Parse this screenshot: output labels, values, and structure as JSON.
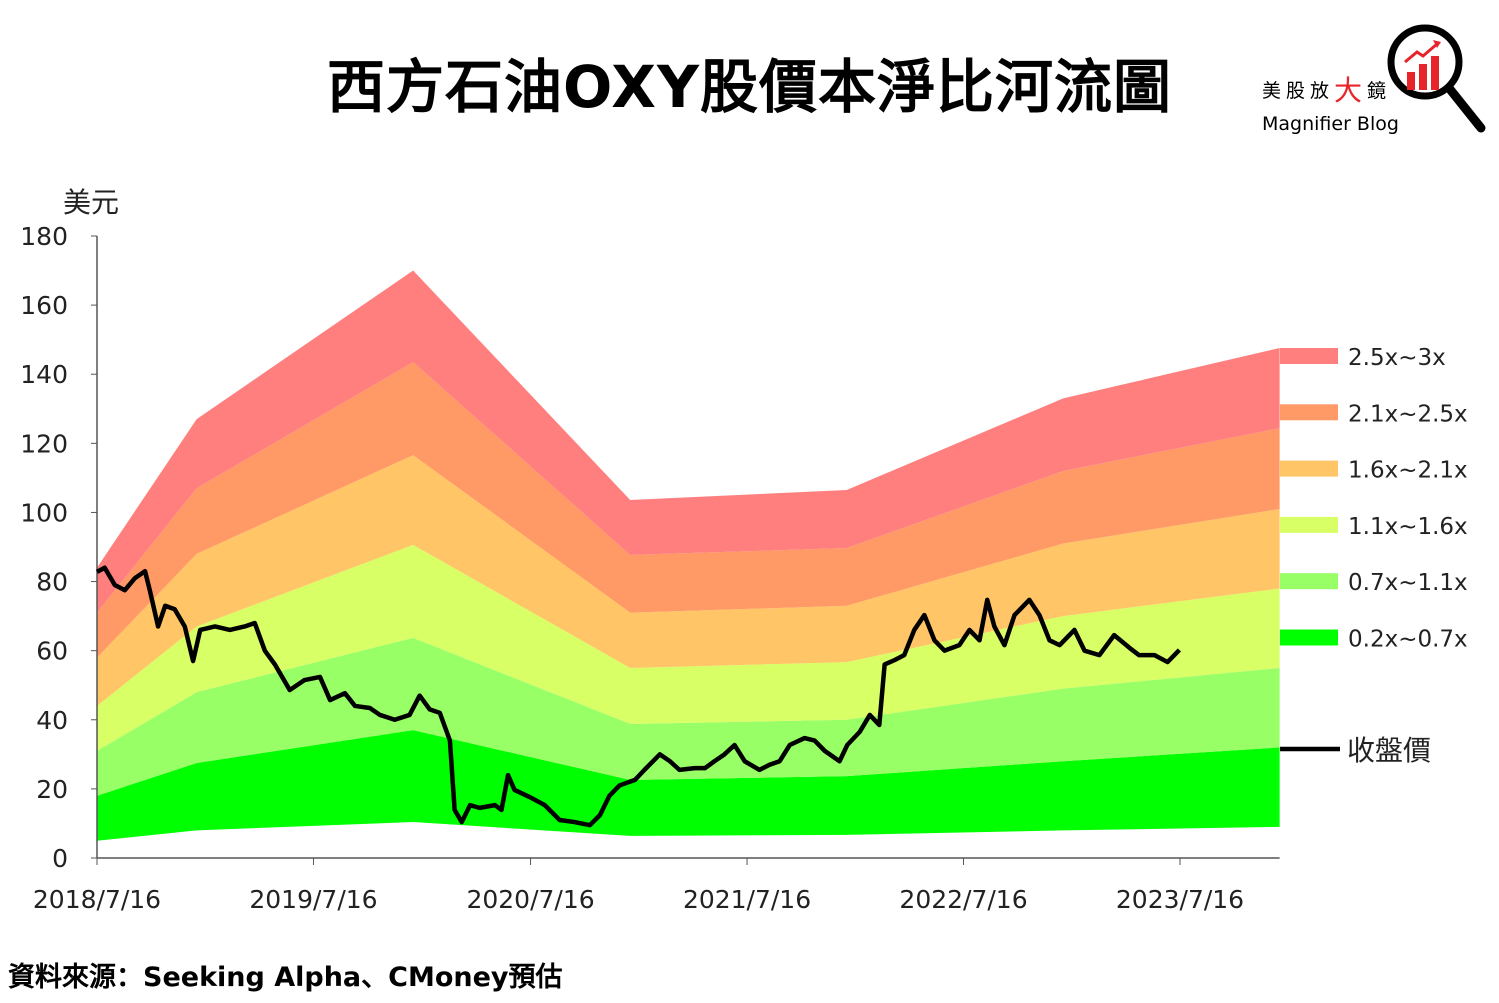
{
  "title": "西方石油OXY股價本淨比河流圖",
  "logo": {
    "cn_prefix": "美股放",
    "cn_big": "大",
    "cn_suffix": "鏡",
    "en": "Magnifier Blog"
  },
  "source": "資料來源：Seeking Alpha、CMoney預估",
  "chart_data": {
    "type": "area",
    "title": "西方石油OXY股價本淨比河流圖",
    "ylabel": "美元",
    "xlabel": "",
    "ylim": [
      0,
      180
    ],
    "yticks": [
      0,
      20,
      40,
      60,
      80,
      100,
      120,
      140,
      160,
      180
    ],
    "xticks": [
      "2018/7/16",
      "2019/7/16",
      "2020/7/16",
      "2021/7/16",
      "2022/7/16",
      "2023/7/16"
    ],
    "xlim": [
      "2018-07-16",
      "2023-12-31"
    ],
    "grid": false,
    "legend_position": "right",
    "band_dates": [
      "2018-07-16",
      "2018-12-31",
      "2019-12-31",
      "2020-12-31",
      "2021-12-31",
      "2022-12-31",
      "2023-12-31"
    ],
    "band_boundaries": [
      {
        "multiple": "0.2x",
        "values": [
          5,
          8,
          10.4,
          6.4,
          6.7,
          8,
          9
        ]
      },
      {
        "multiple": "0.7x",
        "values": [
          18,
          27.5,
          37,
          22.6,
          23.7,
          28,
          32
        ]
      },
      {
        "multiple": "1.1x",
        "values": [
          31,
          48,
          63.7,
          38.8,
          40,
          49,
          55
        ]
      },
      {
        "multiple": "1.6x",
        "values": [
          44,
          67,
          90.6,
          55,
          56.7,
          70,
          78
        ]
      },
      {
        "multiple": "2.1x",
        "values": [
          58,
          88,
          116.6,
          71,
          73,
          91,
          101
        ]
      },
      {
        "multiple": "2.5x",
        "values": [
          71,
          107,
          143.5,
          87.7,
          89.7,
          112,
          124.4
        ]
      },
      {
        "multiple": "3x",
        "values": [
          84,
          127,
          170,
          103.6,
          106.5,
          133,
          147.6
        ]
      }
    ],
    "bands": [
      {
        "name": "2.5x~3x",
        "color": "#FF7F7F"
      },
      {
        "name": "2.1x~2.5x",
        "color": "#FF9966"
      },
      {
        "name": "1.6x~2.1x",
        "color": "#FFC566"
      },
      {
        "name": "1.1x~1.6x",
        "color": "#D9FF66"
      },
      {
        "name": "0.7x~1.1x",
        "color": "#99FF66"
      },
      {
        "name": "0.2x~0.7x",
        "color": "#00FF00"
      }
    ],
    "price_series": {
      "name": "收盤價",
      "color": "#000000",
      "points": [
        [
          "2018-07-16",
          82.8
        ],
        [
          "2018-07-29",
          84
        ],
        [
          "2018-08-15",
          79
        ],
        [
          "2018-09-01",
          77.5
        ],
        [
          "2018-09-18",
          81
        ],
        [
          "2018-10-05",
          83
        ],
        [
          "2018-10-13",
          77.5
        ],
        [
          "2018-10-27",
          67
        ],
        [
          "2018-11-08",
          73
        ],
        [
          "2018-11-24",
          72
        ],
        [
          "2018-12-11",
          67
        ],
        [
          "2018-12-25",
          57
        ],
        [
          "2019-01-06",
          66
        ],
        [
          "2019-01-31",
          67
        ],
        [
          "2019-02-25",
          66
        ],
        [
          "2019-03-22",
          67
        ],
        [
          "2019-04-08",
          68
        ],
        [
          "2019-04-25",
          60
        ],
        [
          "2019-05-12",
          56
        ],
        [
          "2019-06-06",
          48.6
        ],
        [
          "2019-07-01",
          51.5
        ],
        [
          "2019-07-27",
          52.4
        ],
        [
          "2019-08-13",
          45.7
        ],
        [
          "2019-09-07",
          47.7
        ],
        [
          "2019-09-24",
          44
        ],
        [
          "2019-10-19",
          43.4
        ],
        [
          "2019-11-05",
          41.4
        ],
        [
          "2019-11-30",
          40
        ],
        [
          "2019-12-25",
          41.4
        ],
        [
          "2020-01-11",
          47
        ],
        [
          "2020-01-28",
          43
        ],
        [
          "2020-02-14",
          42
        ],
        [
          "2020-03-02",
          34
        ],
        [
          "2020-03-10",
          13.9
        ],
        [
          "2020-03-22",
          10.4
        ],
        [
          "2020-04-05",
          15.3
        ],
        [
          "2020-04-21",
          14.5
        ],
        [
          "2020-05-17",
          15.3
        ],
        [
          "2020-05-28",
          13.9
        ],
        [
          "2020-06-08",
          24
        ],
        [
          "2020-06-19",
          19.7
        ],
        [
          "2020-07-15",
          17.6
        ],
        [
          "2020-08-09",
          15.3
        ],
        [
          "2020-09-03",
          11
        ],
        [
          "2020-09-28",
          10.4
        ],
        [
          "2020-10-24",
          9.5
        ],
        [
          "2020-11-10",
          12.4
        ],
        [
          "2020-11-26",
          18
        ],
        [
          "2020-12-13",
          21
        ],
        [
          "2021-01-08",
          22.6
        ],
        [
          "2021-01-24",
          25.5
        ],
        [
          "2021-02-19",
          30
        ],
        [
          "2021-03-08",
          28
        ],
        [
          "2021-03-24",
          25.5
        ],
        [
          "2021-04-19",
          26
        ],
        [
          "2021-05-06",
          26
        ],
        [
          "2021-05-22",
          28
        ],
        [
          "2021-06-08",
          30
        ],
        [
          "2021-06-25",
          32.7
        ],
        [
          "2021-07-12",
          28
        ],
        [
          "2021-08-06",
          25.5
        ],
        [
          "2021-08-23",
          27
        ],
        [
          "2021-09-09",
          28
        ],
        [
          "2021-09-26",
          32.7
        ],
        [
          "2021-10-21",
          34.7
        ],
        [
          "2021-11-07",
          34
        ],
        [
          "2021-11-24",
          31
        ],
        [
          "2021-12-19",
          28
        ],
        [
          "2022-01-01",
          32.7
        ],
        [
          "2022-01-22",
          36.5
        ],
        [
          "2022-02-08",
          41.4
        ],
        [
          "2022-02-24",
          38.5
        ],
        [
          "2022-03-05",
          56
        ],
        [
          "2022-03-22",
          57.3
        ],
        [
          "2022-04-07",
          58.7
        ],
        [
          "2022-04-24",
          66
        ],
        [
          "2022-05-11",
          70.3
        ],
        [
          "2022-05-28",
          63
        ],
        [
          "2022-06-14",
          60
        ],
        [
          "2022-07-09",
          61.6
        ],
        [
          "2022-07-26",
          66
        ],
        [
          "2022-08-12",
          63
        ],
        [
          "2022-08-25",
          74.7
        ],
        [
          "2022-09-06",
          67
        ],
        [
          "2022-09-23",
          61.6
        ],
        [
          "2022-10-10",
          70.3
        ],
        [
          "2022-11-04",
          74.7
        ],
        [
          "2022-11-21",
          70.3
        ],
        [
          "2022-12-08",
          63
        ],
        [
          "2022-12-25",
          61.6
        ],
        [
          "2023-01-19",
          66
        ],
        [
          "2023-02-05",
          60
        ],
        [
          "2023-03-02",
          58.7
        ],
        [
          "2023-03-27",
          64.5
        ],
        [
          "2023-04-22",
          60.8
        ],
        [
          "2023-05-08",
          58.7
        ],
        [
          "2023-06-03",
          58.7
        ],
        [
          "2023-06-25",
          56.7
        ],
        [
          "2023-07-15",
          60.2
        ]
      ]
    }
  }
}
